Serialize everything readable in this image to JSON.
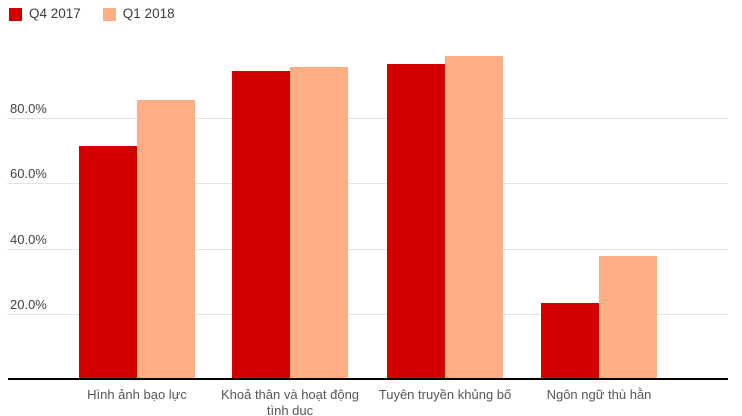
{
  "chart_data": {
    "type": "bar",
    "title": "",
    "xlabel": "",
    "ylabel": "",
    "categories": [
      "Hình ảnh bạo lực",
      "Khoả thân và hoạt động tình dục",
      "Tuyên truyền khủng bố",
      "Ngôn ngữ thù hằn"
    ],
    "series": [
      {
        "name": "Q4 2017",
        "color": "#d40000",
        "values": [
          71.7,
          94.7,
          96.9,
          23.6
        ]
      },
      {
        "name": "Q1 2018",
        "color": "#ffad85",
        "values": [
          85.8,
          95.9,
          99.3,
          38.0
        ]
      }
    ],
    "yticks": [
      {
        "value": 20,
        "label": "20.0%"
      },
      {
        "value": 40,
        "label": "40.0%"
      },
      {
        "value": 60,
        "label": "60.0%"
      },
      {
        "value": 80,
        "label": "80.0%"
      }
    ],
    "ylim": [
      0,
      100
    ],
    "grid": true,
    "legend_position": "top-left",
    "axis_color": "#000000",
    "gridline_color": "#e3e3e3"
  }
}
